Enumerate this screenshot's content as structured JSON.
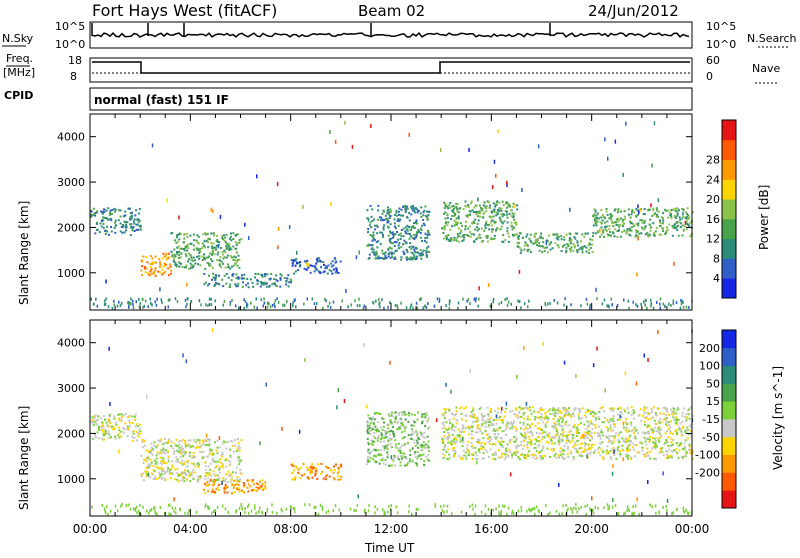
{
  "header": {
    "station": "Fort Hays West (fitACF)",
    "beam": "Beam 02",
    "date": "24/Jun/2012"
  },
  "noise_panel": {
    "left_label": "N.Sky",
    "left_ticks": [
      "10^5",
      "10^0"
    ],
    "right_ticks": [
      "10^5",
      "10^0"
    ],
    "right_label": "N.Search"
  },
  "freq_panel": {
    "left_label_1": "Freq.",
    "left_label_2": "[MHz]",
    "left_ticks": [
      "18",
      "8"
    ],
    "right_ticks": [
      "60",
      "0"
    ],
    "right_label": "Nave",
    "cpid_label": "CPID"
  },
  "cpid_text": "normal (fast) 151 IF",
  "chart_data": [
    {
      "type": "heatmap",
      "name": "power",
      "ylabel": "Slant Range [km]",
      "xlabel": "",
      "ylim": [
        180,
        4500
      ],
      "yticks": [
        "1000",
        "2000",
        "3000",
        "4000"
      ],
      "xlim": [
        0,
        24
      ],
      "colorbar": {
        "label": "Power [dB]",
        "ticks": [
          "4",
          "8",
          "12",
          "16",
          "20",
          "24",
          "28"
        ],
        "colors": [
          "#1428e6",
          "#2f5fc7",
          "#2b8c7a",
          "#48a34a",
          "#8bc34a",
          "#ffd400",
          "#ff9a00",
          "#ff5a00",
          "#e61414"
        ]
      },
      "bands": [
        {
          "t0": 0.0,
          "t1": 2.0,
          "r0": 1850,
          "r1": 2450,
          "level": 2
        },
        {
          "t0": 2.0,
          "t1": 3.2,
          "r0": 950,
          "r1": 1450,
          "level": 6
        },
        {
          "t0": 3.2,
          "t1": 6.0,
          "r0": 1100,
          "r1": 1900,
          "level": 3
        },
        {
          "t0": 4.5,
          "t1": 8.0,
          "r0": 700,
          "r1": 1000,
          "level": 2
        },
        {
          "t0": 8.0,
          "t1": 10.0,
          "r0": 1000,
          "r1": 1350,
          "level": 1
        },
        {
          "t0": 11.0,
          "t1": 13.5,
          "r0": 1300,
          "r1": 2500,
          "level": 2
        },
        {
          "t0": 14.0,
          "t1": 17.0,
          "r0": 1700,
          "r1": 2600,
          "level": 3
        },
        {
          "t0": 17.0,
          "t1": 20.0,
          "r0": 1450,
          "r1": 1900,
          "level": 3
        },
        {
          "t0": 20.0,
          "t1": 24.0,
          "r0": 1800,
          "r1": 2450,
          "level": 3
        }
      ]
    },
    {
      "type": "heatmap",
      "name": "velocity",
      "ylabel": "Slant Range [km]",
      "xlabel": "Time UT",
      "ylim": [
        180,
        4500
      ],
      "yticks": [
        "1000",
        "2000",
        "3000",
        "4000"
      ],
      "xlim": [
        0,
        24
      ],
      "xticks": [
        "00:00",
        "04:00",
        "08:00",
        "12:00",
        "16:00",
        "20:00",
        "00:00"
      ],
      "colorbar": {
        "label": "Velocity [m s^-1]",
        "ticks": [
          "200",
          "100",
          "50",
          "15",
          "-15",
          "-50",
          "-100",
          "-200"
        ],
        "colors": [
          "#1428e6",
          "#2f5fc7",
          "#2b8c7a",
          "#48a34a",
          "#7cd13a",
          "#c8c8c8",
          "#ffd400",
          "#ff9a00",
          "#ff5a00",
          "#e61414"
        ]
      },
      "bands": [
        {
          "t0": 0.0,
          "t1": 2.0,
          "r0": 1850,
          "r1": 2450,
          "level": 5
        },
        {
          "t0": 2.0,
          "t1": 6.0,
          "r0": 950,
          "r1": 1900,
          "level": 5
        },
        {
          "t0": 4.5,
          "t1": 7.0,
          "r0": 700,
          "r1": 1000,
          "level": 7
        },
        {
          "t0": 8.0,
          "t1": 10.0,
          "r0": 1000,
          "r1": 1350,
          "level": 7
        },
        {
          "t0": 11.0,
          "t1": 13.5,
          "r0": 1300,
          "r1": 2500,
          "level": 4
        },
        {
          "t0": 14.0,
          "t1": 24.0,
          "r0": 1450,
          "r1": 2600,
          "level": 5
        }
      ]
    }
  ]
}
